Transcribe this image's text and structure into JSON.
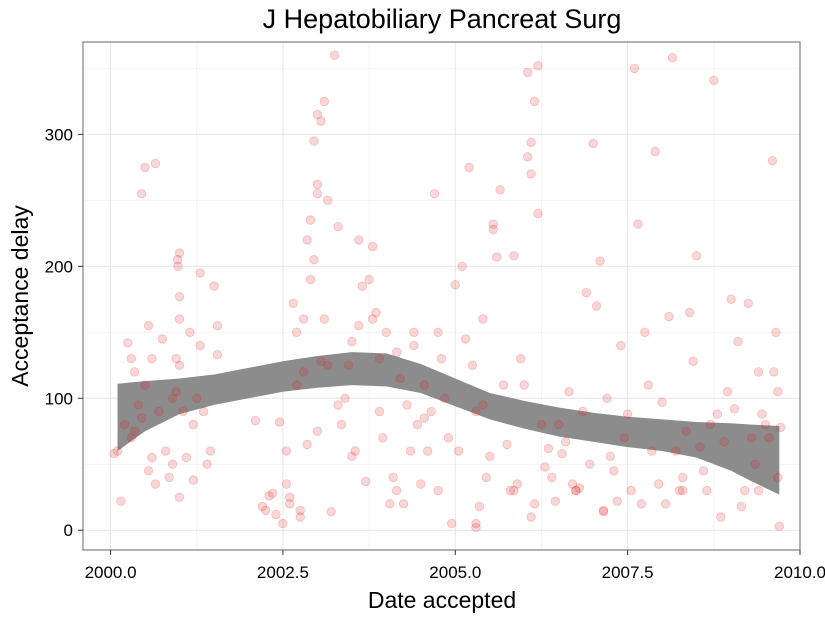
{
  "chart_data": {
    "type": "scatter",
    "title": "J Hepatobiliary Pancreat Surg",
    "xlabel": "Date accepted",
    "ylabel": "Acceptance delay",
    "xlim": [
      1999.6,
      2010.0
    ],
    "ylim": [
      -15,
      370
    ],
    "x_ticks": [
      2000.0,
      2002.5,
      2005.0,
      2007.5,
      2010.0
    ],
    "x_tick_labels": [
      "2000.0",
      "2002.5",
      "2005.0",
      "2007.5",
      "2010.0"
    ],
    "y_ticks": [
      0,
      100,
      200,
      300
    ],
    "y_tick_labels": [
      "0",
      "100",
      "200",
      "300"
    ],
    "grid": true,
    "point_color": "#e31a1c",
    "band_color": "#8c8c8c",
    "points": [
      [
        2000.1,
        60
      ],
      [
        2000.15,
        22
      ],
      [
        2000.2,
        80
      ],
      [
        2000.25,
        142
      ],
      [
        2000.3,
        130
      ],
      [
        2000.3,
        70
      ],
      [
        2000.35,
        75
      ],
      [
        2000.35,
        120
      ],
      [
        2000.4,
        95
      ],
      [
        2000.45,
        85
      ],
      [
        2000.45,
        255
      ],
      [
        2000.5,
        275
      ],
      [
        2000.5,
        110
      ],
      [
        2000.55,
        45
      ],
      [
        2000.55,
        155
      ],
      [
        2000.6,
        130
      ],
      [
        2000.6,
        55
      ],
      [
        2000.65,
        35
      ],
      [
        2000.65,
        278
      ],
      [
        2000.7,
        90
      ],
      [
        2000.75,
        145
      ],
      [
        2000.8,
        60
      ],
      [
        2000.85,
        40
      ],
      [
        2000.9,
        50
      ],
      [
        2000.95,
        105
      ],
      [
        2000.95,
        130
      ],
      [
        2000.97,
        205
      ],
      [
        2000.98,
        200
      ],
      [
        2001.0,
        210
      ],
      [
        2001.0,
        125
      ],
      [
        2001.0,
        160
      ],
      [
        2001.0,
        177
      ],
      [
        2001.05,
        90
      ],
      [
        2001.1,
        55
      ],
      [
        2001.15,
        150
      ],
      [
        2001.2,
        80
      ],
      [
        2001.25,
        100
      ],
      [
        2001.3,
        140
      ],
      [
        2001.3,
        195
      ],
      [
        2001.35,
        90
      ],
      [
        2001.4,
        50
      ],
      [
        2001.45,
        60
      ],
      [
        2001.5,
        185
      ],
      [
        2001.55,
        155
      ],
      [
        2001.55,
        133
      ],
      [
        2001.2,
        38
      ],
      [
        2000.05,
        58
      ],
      [
        2001.0,
        25
      ],
      [
        2000.9,
        100
      ],
      [
        2002.1,
        83
      ],
      [
        2002.2,
        18
      ],
      [
        2002.25,
        15
      ],
      [
        2002.3,
        26
      ],
      [
        2002.35,
        28
      ],
      [
        2002.4,
        12
      ],
      [
        2002.45,
        82
      ],
      [
        2002.5,
        5
      ],
      [
        2002.55,
        35
      ],
      [
        2002.55,
        60
      ],
      [
        2002.6,
        25
      ],
      [
        2002.6,
        20
      ],
      [
        2002.65,
        172
      ],
      [
        2002.7,
        150
      ],
      [
        2002.7,
        110
      ],
      [
        2002.75,
        10
      ],
      [
        2002.75,
        15
      ],
      [
        2002.8,
        120
      ],
      [
        2002.8,
        160
      ],
      [
        2002.85,
        220
      ],
      [
        2002.9,
        190
      ],
      [
        2002.9,
        235
      ],
      [
        2002.95,
        205
      ],
      [
        2002.95,
        295
      ],
      [
        2003.0,
        315
      ],
      [
        2003.0,
        262
      ],
      [
        2003.0,
        255
      ],
      [
        2003.0,
        75
      ],
      [
        2003.05,
        310
      ],
      [
        2003.05,
        128
      ],
      [
        2003.1,
        325
      ],
      [
        2003.1,
        160
      ],
      [
        2003.15,
        250
      ],
      [
        2003.15,
        125
      ],
      [
        2003.2,
        14
      ],
      [
        2003.25,
        360
      ],
      [
        2003.3,
        230
      ],
      [
        2003.3,
        95
      ],
      [
        2003.35,
        80
      ],
      [
        2003.4,
        100
      ],
      [
        2003.45,
        125
      ],
      [
        2003.5,
        143
      ],
      [
        2003.5,
        56
      ],
      [
        2003.55,
        60
      ],
      [
        2003.6,
        220
      ],
      [
        2003.65,
        185
      ],
      [
        2003.7,
        37
      ],
      [
        2003.75,
        190
      ],
      [
        2003.8,
        215
      ],
      [
        2003.8,
        160
      ],
      [
        2003.85,
        165
      ],
      [
        2003.9,
        130
      ],
      [
        2003.9,
        90
      ],
      [
        2003.95,
        70
      ],
      [
        2004.0,
        150
      ],
      [
        2004.05,
        20
      ],
      [
        2004.1,
        40
      ],
      [
        2004.15,
        30
      ],
      [
        2004.15,
        135
      ],
      [
        2004.2,
        115
      ],
      [
        2004.25,
        20
      ],
      [
        2004.3,
        95
      ],
      [
        2004.35,
        60
      ],
      [
        2004.4,
        140
      ],
      [
        2004.4,
        150
      ],
      [
        2004.45,
        80
      ],
      [
        2004.5,
        35
      ],
      [
        2004.55,
        110
      ],
      [
        2004.6,
        60
      ],
      [
        2004.65,
        90
      ],
      [
        2004.7,
        255
      ],
      [
        2004.75,
        30
      ],
      [
        2004.75,
        150
      ],
      [
        2004.8,
        130
      ],
      [
        2004.85,
        100
      ],
      [
        2004.9,
        70
      ],
      [
        2004.95,
        5
      ],
      [
        2005.0,
        186
      ],
      [
        2005.05,
        60
      ],
      [
        2005.1,
        200
      ],
      [
        2005.15,
        145
      ],
      [
        2005.2,
        275
      ],
      [
        2005.25,
        125
      ],
      [
        2005.3,
        90
      ],
      [
        2005.3,
        5
      ],
      [
        2005.35,
        18
      ],
      [
        2005.4,
        160
      ],
      [
        2005.4,
        95
      ],
      [
        2005.45,
        40
      ],
      [
        2005.5,
        56
      ],
      [
        2005.55,
        232
      ],
      [
        2005.55,
        228
      ],
      [
        2005.6,
        207
      ],
      [
        2005.65,
        258
      ],
      [
        2005.7,
        110
      ],
      [
        2005.75,
        65
      ],
      [
        2005.8,
        30
      ],
      [
        2005.85,
        208
      ],
      [
        2005.9,
        35
      ],
      [
        2005.95,
        130
      ],
      [
        2006.0,
        110
      ],
      [
        2006.05,
        283
      ],
      [
        2006.05,
        347
      ],
      [
        2006.1,
        294
      ],
      [
        2006.1,
        270
      ],
      [
        2006.15,
        325
      ],
      [
        2006.2,
        352
      ],
      [
        2006.2,
        240
      ],
      [
        2006.25,
        80
      ],
      [
        2006.3,
        48
      ],
      [
        2006.35,
        62
      ],
      [
        2006.4,
        40
      ],
      [
        2006.45,
        22
      ],
      [
        2006.5,
        80
      ],
      [
        2006.55,
        58
      ],
      [
        2006.6,
        67
      ],
      [
        2006.65,
        105
      ],
      [
        2006.7,
        35
      ],
      [
        2006.75,
        30
      ],
      [
        2006.8,
        32
      ],
      [
        2006.85,
        90
      ],
      [
        2006.9,
        180
      ],
      [
        2006.95,
        50
      ],
      [
        2007.0,
        293
      ],
      [
        2007.05,
        170
      ],
      [
        2007.1,
        204
      ],
      [
        2007.15,
        14
      ],
      [
        2007.2,
        100
      ],
      [
        2007.25,
        56
      ],
      [
        2007.3,
        45
      ],
      [
        2007.35,
        22
      ],
      [
        2007.4,
        140
      ],
      [
        2007.45,
        70
      ],
      [
        2007.5,
        88
      ],
      [
        2007.55,
        30
      ],
      [
        2007.6,
        350
      ],
      [
        2007.65,
        232
      ],
      [
        2007.7,
        20
      ],
      [
        2007.75,
        150
      ],
      [
        2007.8,
        110
      ],
      [
        2007.85,
        60
      ],
      [
        2007.9,
        287
      ],
      [
        2007.95,
        35
      ],
      [
        2008.0,
        97
      ],
      [
        2008.05,
        20
      ],
      [
        2008.1,
        162
      ],
      [
        2008.15,
        358
      ],
      [
        2008.2,
        60
      ],
      [
        2008.25,
        30
      ],
      [
        2008.3,
        40
      ],
      [
        2008.35,
        75
      ],
      [
        2008.4,
        165
      ],
      [
        2008.45,
        128
      ],
      [
        2008.5,
        208
      ],
      [
        2008.55,
        63
      ],
      [
        2008.6,
        45
      ],
      [
        2008.65,
        30
      ],
      [
        2008.7,
        80
      ],
      [
        2008.75,
        341
      ],
      [
        2008.8,
        88
      ],
      [
        2008.85,
        10
      ],
      [
        2008.9,
        67
      ],
      [
        2008.95,
        105
      ],
      [
        2009.0,
        175
      ],
      [
        2009.05,
        92
      ],
      [
        2009.1,
        143
      ],
      [
        2009.15,
        18
      ],
      [
        2009.2,
        30
      ],
      [
        2009.25,
        172
      ],
      [
        2009.3,
        70
      ],
      [
        2009.35,
        50
      ],
      [
        2009.4,
        30
      ],
      [
        2009.45,
        88
      ],
      [
        2009.5,
        80
      ],
      [
        2009.55,
        70
      ],
      [
        2009.6,
        280
      ],
      [
        2009.62,
        120
      ],
      [
        2009.65,
        150
      ],
      [
        2009.68,
        40
      ],
      [
        2009.7,
        3
      ],
      [
        2009.72,
        78
      ],
      [
        2009.68,
        105
      ],
      [
        2009.4,
        120
      ],
      [
        2006.1,
        10
      ],
      [
        2006.15,
        20
      ],
      [
        2004.55,
        85
      ],
      [
        2003.6,
        155
      ],
      [
        2002.85,
        65
      ],
      [
        2007.15,
        15
      ],
      [
        2005.85,
        30
      ],
      [
        2006.75,
        30
      ],
      [
        2005.3,
        2
      ],
      [
        2008.3,
        30
      ]
    ],
    "band_upper": [
      [
        2000.1,
        111
      ],
      [
        2000.5,
        113
      ],
      [
        2001.0,
        115
      ],
      [
        2001.5,
        118
      ],
      [
        2002.0,
        123
      ],
      [
        2002.5,
        128
      ],
      [
        2003.0,
        132
      ],
      [
        2003.5,
        135
      ],
      [
        2004.0,
        134
      ],
      [
        2004.5,
        126
      ],
      [
        2005.0,
        115
      ],
      [
        2005.5,
        104
      ],
      [
        2006.0,
        98
      ],
      [
        2006.5,
        93
      ],
      [
        2007.0,
        89
      ],
      [
        2007.5,
        86
      ],
      [
        2008.0,
        84
      ],
      [
        2008.5,
        82
      ],
      [
        2009.0,
        81
      ],
      [
        2009.3,
        80
      ],
      [
        2009.7,
        79
      ]
    ],
    "band_lower": [
      [
        2000.1,
        60
      ],
      [
        2000.5,
        75
      ],
      [
        2001.0,
        88
      ],
      [
        2001.5,
        95
      ],
      [
        2002.0,
        100
      ],
      [
        2002.5,
        105
      ],
      [
        2003.0,
        108
      ],
      [
        2003.5,
        110
      ],
      [
        2004.0,
        109
      ],
      [
        2004.5,
        104
      ],
      [
        2005.0,
        94
      ],
      [
        2005.5,
        84
      ],
      [
        2006.0,
        77
      ],
      [
        2006.5,
        71
      ],
      [
        2007.0,
        67
      ],
      [
        2007.5,
        63
      ],
      [
        2008.0,
        60
      ],
      [
        2008.5,
        55
      ],
      [
        2009.0,
        45
      ],
      [
        2009.3,
        37
      ],
      [
        2009.7,
        27
      ]
    ]
  }
}
